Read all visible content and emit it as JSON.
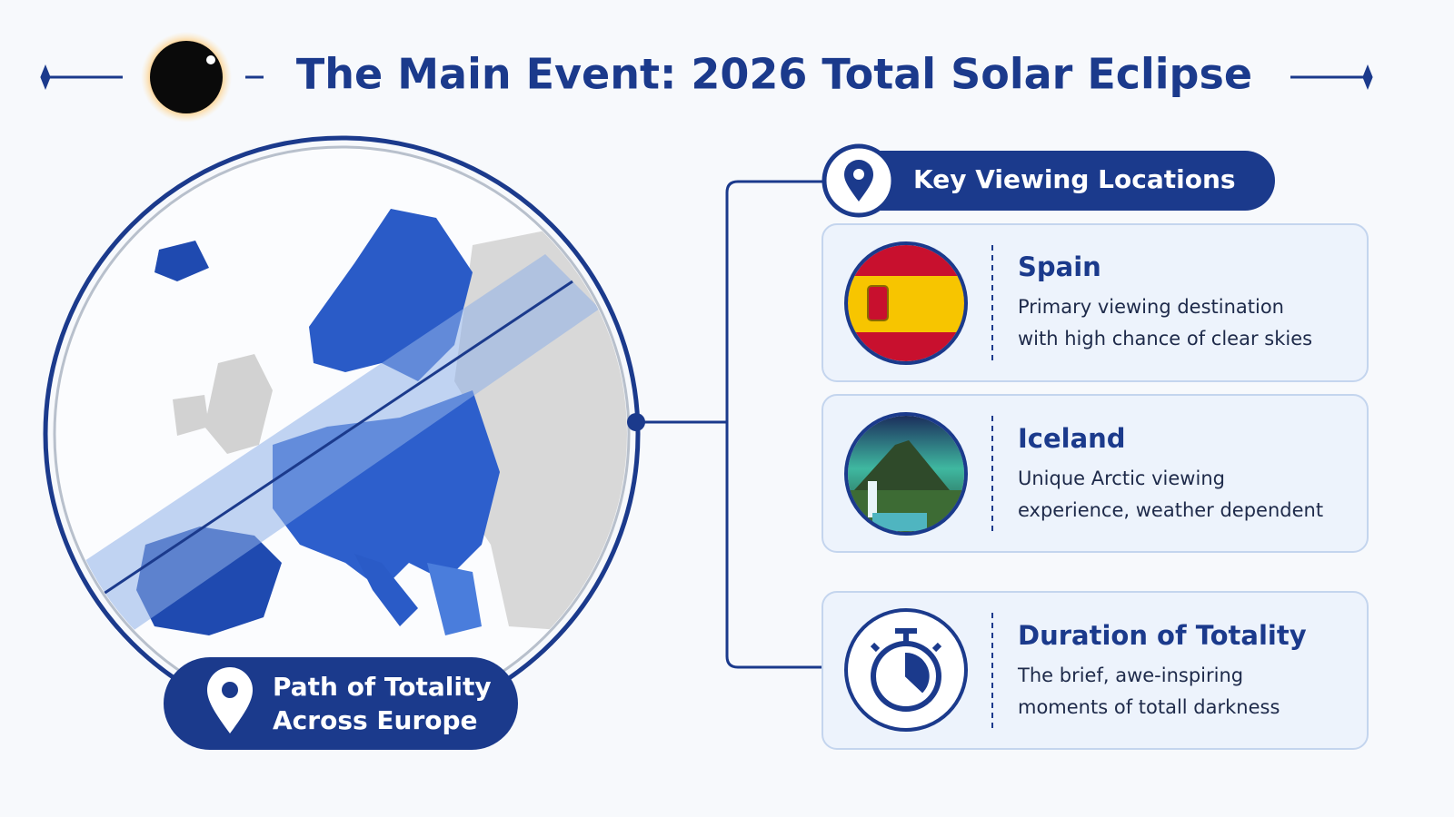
{
  "header": {
    "title": "The Main Event: 2026 Total Solar Eclipse"
  },
  "map": {
    "label": [
      "Path of Totality",
      "Across Europe"
    ]
  },
  "locations": {
    "title": "Key Viewing Locations",
    "cards": [
      {
        "title": "Spain",
        "description": [
          "Primary viewing destination",
          "with high chance of clear skies"
        ]
      },
      {
        "title": "Iceland",
        "description": [
          "Unique Arctic viewing",
          "experience, weather dependent"
        ]
      },
      {
        "title": "Duration of Totality",
        "description": [
          "The brief, awe-inspiring",
          "moments of totall darkness"
        ]
      }
    ]
  }
}
